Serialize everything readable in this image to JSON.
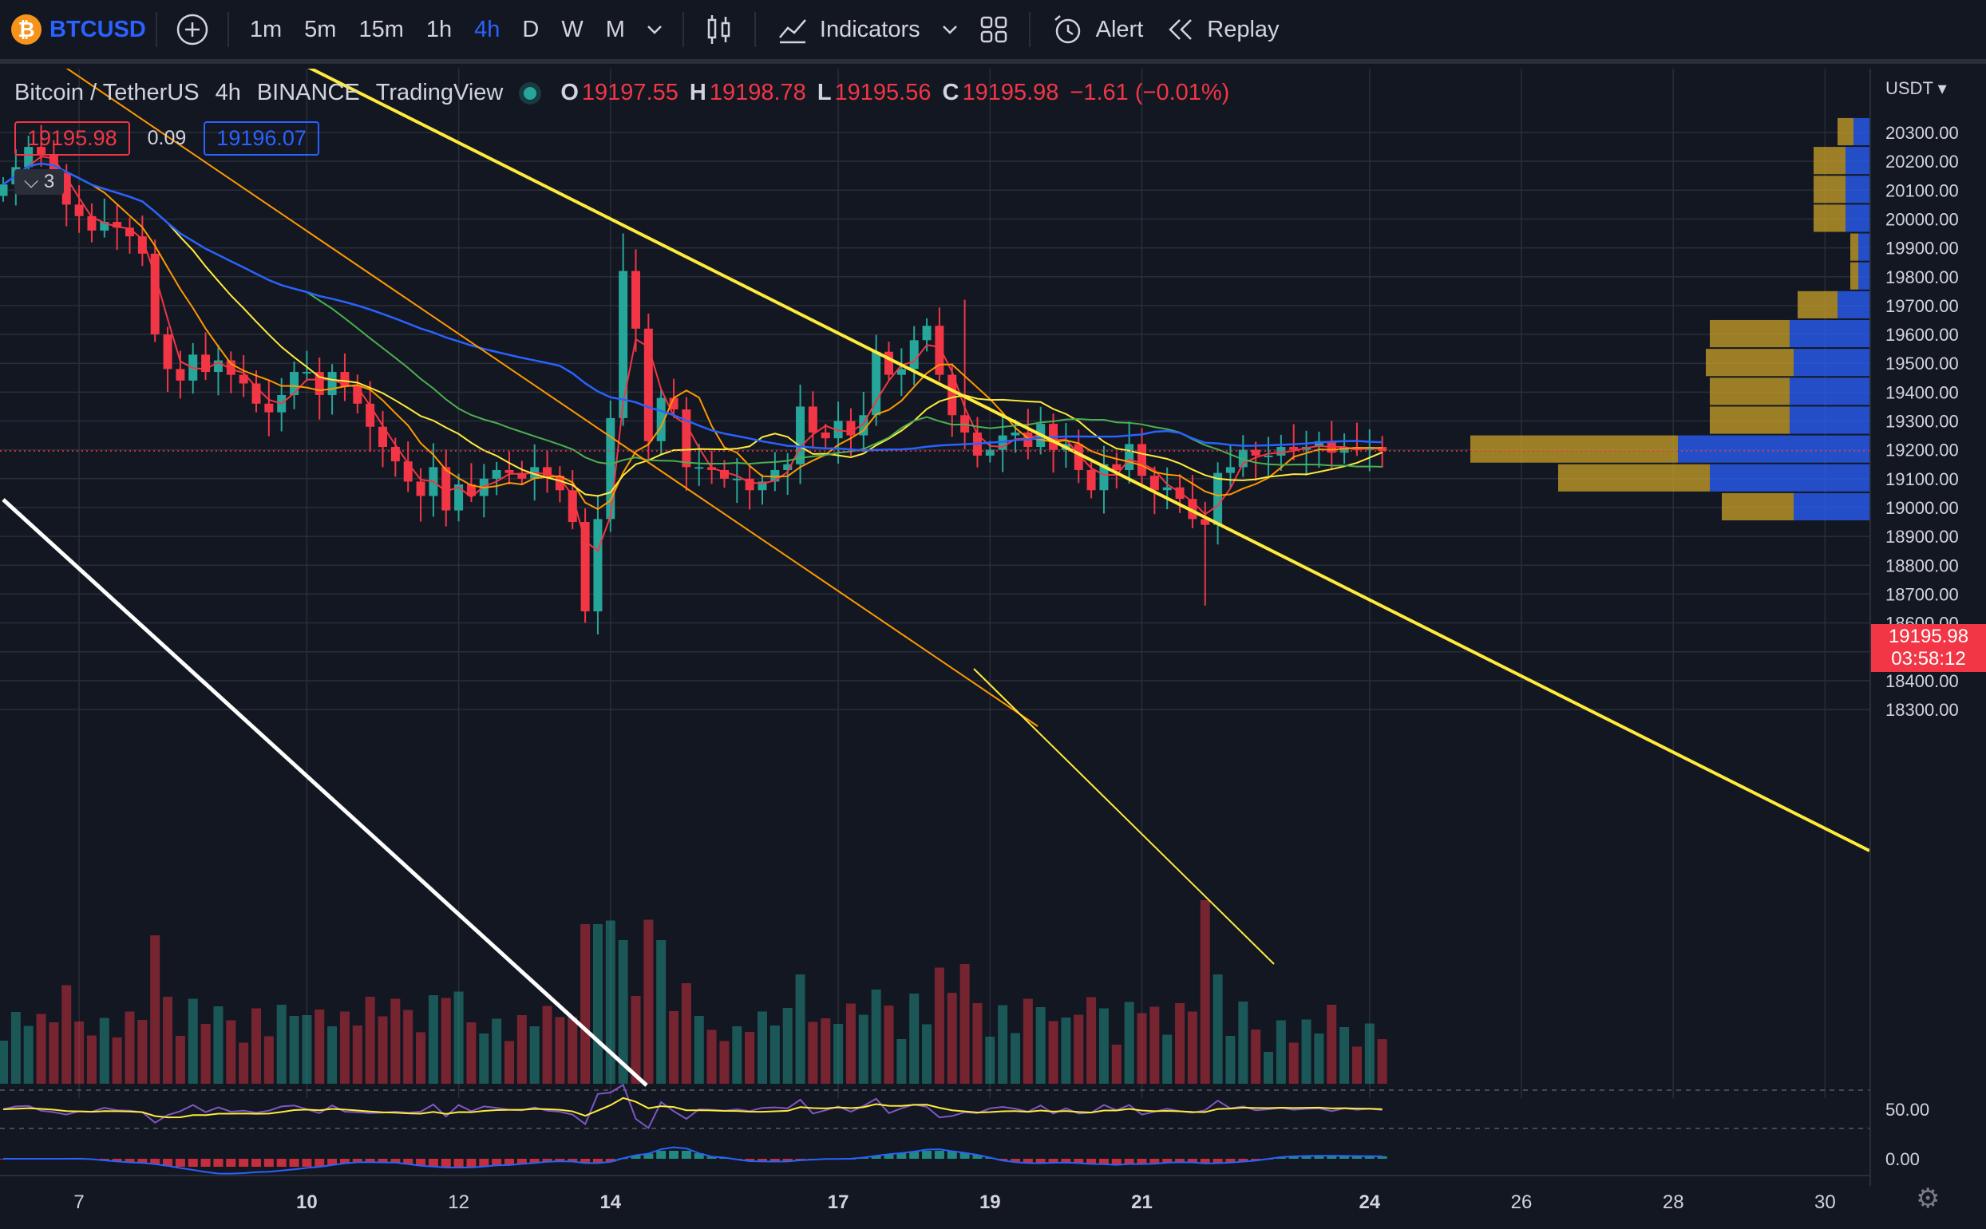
{
  "toolbar": {
    "symbol": "BTCUSD",
    "logo": "₿",
    "timeframes": [
      "1m",
      "5m",
      "15m",
      "1h",
      "4h",
      "D",
      "W",
      "M"
    ],
    "active_timeframe": "4h",
    "indicators_label": "Indicators",
    "alert_label": "Alert",
    "replay_label": "Replay",
    "icons": [
      "plus-icon",
      "chevron-down-icon",
      "candles-icon",
      "indicators-icon",
      "layout-grid-icon",
      "alarm-icon",
      "replay-icon"
    ]
  },
  "legend": {
    "title": "Bitcoin / TetherUS",
    "interval": "4h",
    "exchange": "BINANCE",
    "provider": "TradingView",
    "open_k": "O",
    "open_v": "19197.55",
    "high_k": "H",
    "high_v": "19198.78",
    "low_k": "L",
    "low_v": "19195.56",
    "close_k": "C",
    "close_v": "19195.98",
    "change": "−1.61 (−0.01%)"
  },
  "bidask": {
    "bid": "19195.98",
    "spread": "0.09",
    "ask": "19196.07"
  },
  "collapse": {
    "label": "3"
  },
  "price_axis": {
    "currency": "USDT",
    "last_price": "19195.98",
    "countdown": "03:58:12",
    "rsi_label": "50.00",
    "macd_label": "0.00"
  },
  "colors": {
    "up": "#26a69a",
    "down": "#f23645",
    "bg": "#131722",
    "grid": "#2a2e39",
    "ma_fast": "#f23645",
    "ma_mid": "#ff9800",
    "ma_slow": "#ffeb3b",
    "ma_green": "#4caf50",
    "ma_blue": "#2962ff"
  },
  "chart_data": {
    "type": "candlestick",
    "interval": "4h",
    "y_ticks": [
      20300,
      20200,
      20100,
      20000,
      19900,
      19800,
      19700,
      19600,
      19500,
      19400,
      19300,
      19200,
      19100,
      19000,
      18900,
      18800,
      18700,
      18600,
      18500,
      18400,
      18300
    ],
    "x_ticks": [
      {
        "label": "7",
        "bold": false,
        "idx": 6
      },
      {
        "label": "10",
        "bold": true,
        "idx": 24
      },
      {
        "label": "12",
        "bold": false,
        "idx": 36
      },
      {
        "label": "14",
        "bold": true,
        "idx": 48
      },
      {
        "label": "17",
        "bold": true,
        "idx": 66
      },
      {
        "label": "19",
        "bold": true,
        "idx": 78
      },
      {
        "label": "21",
        "bold": true,
        "idx": 90
      },
      {
        "label": "24",
        "bold": true,
        "idx": 108
      },
      {
        "label": "26",
        "bold": false,
        "idx": 120
      },
      {
        "label": "28",
        "bold": false,
        "idx": 132
      },
      {
        "label": "30",
        "bold": false,
        "idx": 144
      }
    ],
    "closes": [
      20120,
      20180,
      20250,
      20220,
      20160,
      20050,
      20010,
      19960,
      19990,
      19970,
      19940,
      19880,
      19600,
      19480,
      19440,
      19530,
      19470,
      19510,
      19460,
      19430,
      19360,
      19330,
      19390,
      19470,
      19470,
      19390,
      19470,
      19420,
      19360,
      19280,
      19210,
      19160,
      19090,
      19040,
      19140,
      18990,
      19080,
      19040,
      19100,
      19130,
      19120,
      19100,
      19140,
      19110,
      19060,
      18950,
      18640,
      18960,
      19310,
      19820,
      19620,
      19230,
      19380,
      19340,
      19140,
      19140,
      19130,
      19100,
      19100,
      19060,
      19090,
      19130,
      19150,
      19350,
      19260,
      19240,
      19300,
      19250,
      19320,
      19540,
      19460,
      19480,
      19580,
      19630,
      19460,
      19320,
      19260,
      19180,
      19200,
      19250,
      19260,
      19210,
      19290,
      19200,
      19220,
      19130,
      19060,
      19150,
      19130,
      19220,
      19110,
      19060,
      19070,
      19030,
      18960,
      18940,
      19120,
      19140,
      19200,
      19180,
      19180,
      19210,
      19200,
      19210,
      19230,
      19190,
      19210,
      19200,
      19210,
      19196
    ],
    "volume_source": "estimated",
    "indicators": [
      "MA fast",
      "MA mid",
      "MA slow",
      "MA green",
      "MA blue",
      "RSI",
      "MACD",
      "Volume profile"
    ]
  }
}
